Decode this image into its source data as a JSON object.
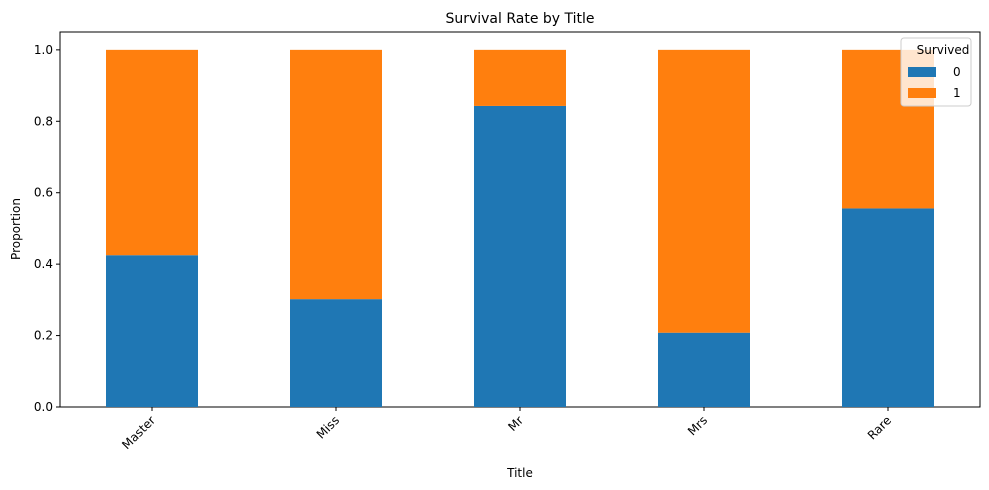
{
  "chart_data": {
    "type": "bar",
    "stacked": true,
    "title": "Survival Rate by Title",
    "xlabel": "Title",
    "ylabel": "Proportion",
    "categories": [
      "Master",
      "Miss",
      "Mr",
      "Mrs",
      "Rare"
    ],
    "series": [
      {
        "name": "0",
        "values": [
          0.425,
          0.302,
          0.843,
          0.208,
          0.556
        ],
        "color": "#1f77b4"
      },
      {
        "name": "1",
        "values": [
          0.575,
          0.698,
          0.157,
          0.792,
          0.444
        ],
        "color": "#ff7f0e"
      }
    ],
    "ylim": [
      0,
      1.05
    ],
    "yticks": [
      "0.0",
      "0.2",
      "0.4",
      "0.6",
      "0.8",
      "1.0"
    ],
    "ytick_values": [
      0,
      0.2,
      0.4,
      0.6,
      0.8,
      1.0
    ],
    "x_tick_rotation_deg": 45,
    "grid": false,
    "legend": {
      "title": "Survived",
      "placement": "top-right"
    }
  }
}
